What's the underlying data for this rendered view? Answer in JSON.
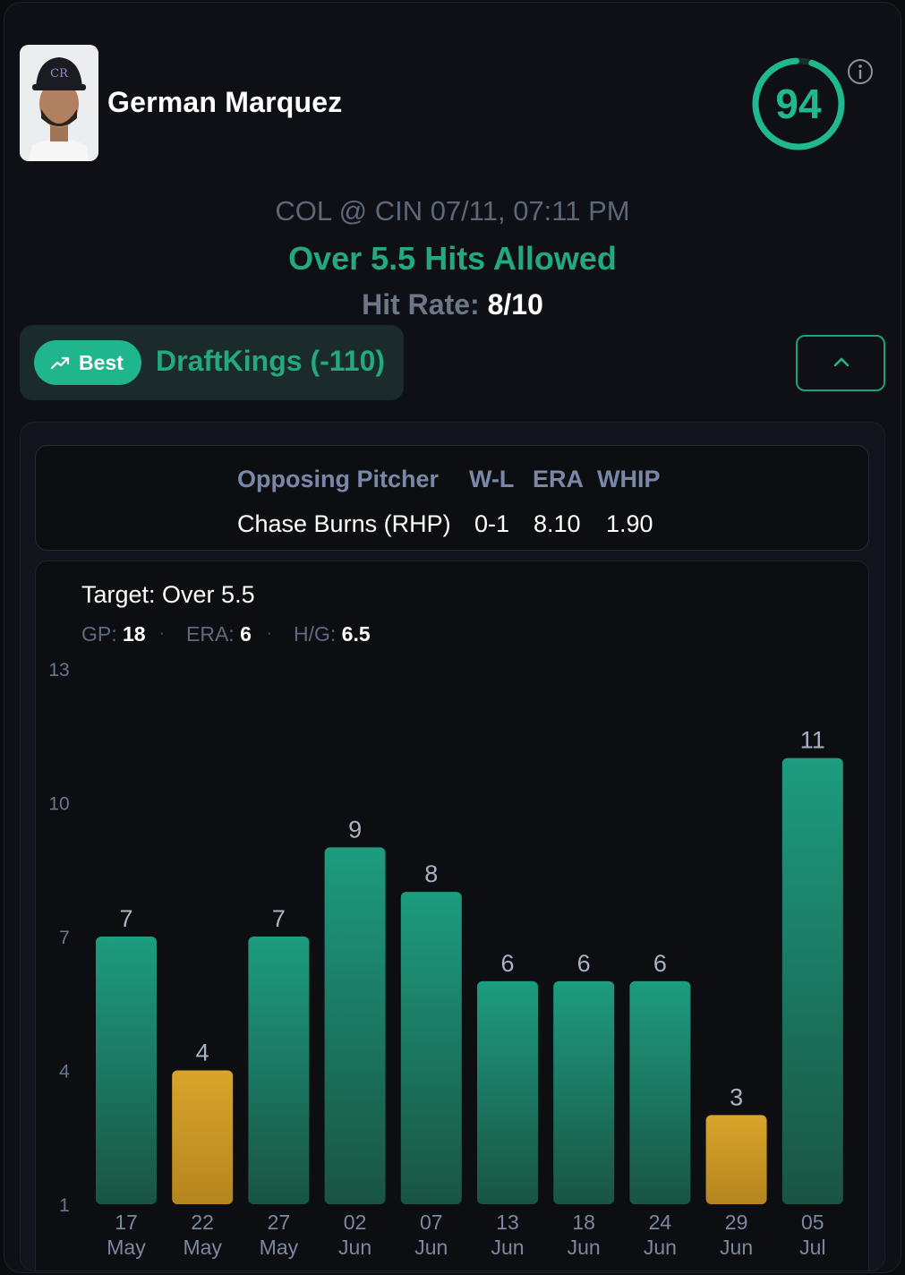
{
  "player": {
    "name": "German Marquez",
    "score": "94",
    "score_fraction": 0.94
  },
  "game": {
    "matchup": "COL @ CIN 07/11, 07:11 PM",
    "prop": "Over 5.5 Hits Allowed",
    "hit_rate_label": "Hit Rate:",
    "hit_rate_value": "8/10"
  },
  "book": {
    "best_label": "Best",
    "name": "DraftKings (-110)"
  },
  "opposing_pitcher": {
    "headers": [
      "Opposing Pitcher",
      "W-L",
      "ERA",
      "WHIP"
    ],
    "values": [
      "Chase Burns (RHP)",
      "0-1",
      "8.10",
      "1.90"
    ]
  },
  "summary": {
    "target": "Target: Over 5.5",
    "stats": [
      {
        "label": "GP:",
        "value": "18"
      },
      {
        "label": "ERA:",
        "value": "6"
      },
      {
        "label": "H/G:",
        "value": "6.5"
      }
    ]
  },
  "colors": {
    "hit": "#1fa383",
    "miss": "#d9a42a",
    "accent": "#22a97f"
  },
  "chart_data": {
    "type": "bar",
    "categories": [
      [
        "17",
        "May"
      ],
      [
        "22",
        "May"
      ],
      [
        "27",
        "May"
      ],
      [
        "02",
        "Jun"
      ],
      [
        "07",
        "Jun"
      ],
      [
        "13",
        "Jun"
      ],
      [
        "18",
        "Jun"
      ],
      [
        "24",
        "Jun"
      ],
      [
        "29",
        "Jun"
      ],
      [
        "05",
        "Jul"
      ]
    ],
    "values": [
      7,
      4,
      7,
      9,
      8,
      6,
      6,
      6,
      3,
      11
    ],
    "yticks": [
      1,
      4,
      7,
      10,
      13
    ],
    "ylim": [
      1,
      13
    ],
    "threshold": 5.5,
    "grid": false
  }
}
